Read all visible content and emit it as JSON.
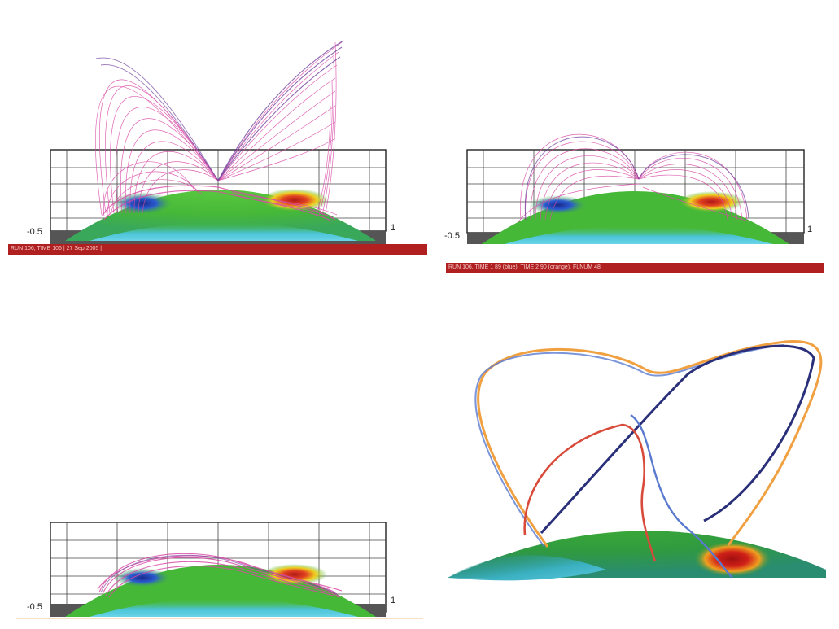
{
  "panels": [
    {
      "id": "top-left",
      "left_tick": "-0.5",
      "right_tick": "1",
      "caption": "RUN 106, TIME 106 | 27 Sep 2005 |"
    },
    {
      "id": "top-right",
      "left_tick": "-0.5",
      "right_tick": "1",
      "caption": "RUN 106, TIME 1 89 (blue), TIME 2 90 (orange), FLNUM 48"
    },
    {
      "id": "bottom-left",
      "left_tick": "-0.5",
      "right_tick": "1"
    },
    {
      "id": "bottom-right"
    }
  ],
  "colors": {
    "photosphere_green": "#46b838",
    "cyan_patch": "#4cc4d8",
    "negative_polarity": "#1a3fb0",
    "positive_polarity": "#c81e1e",
    "field_line_magenta": "#d94aa6",
    "field_line_purple": "#6a3a9a",
    "orange_line": "#f0a040",
    "navy_line": "#2a2f7a",
    "blue_line": "#5a7ad0",
    "red_line": "#d84a3a",
    "caption_bar": "#b02020"
  }
}
